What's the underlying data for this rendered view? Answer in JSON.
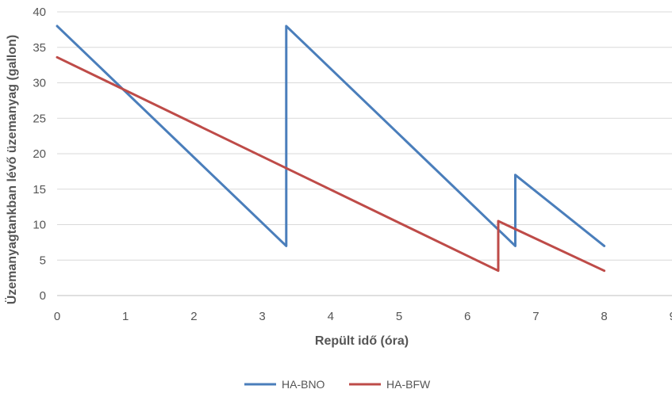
{
  "chart_data": {
    "type": "line",
    "xlabel": "Repült idő (óra)",
    "ylabel": "Üzemanyagtankban lévő üzemanyag (gallon)",
    "xlim": [
      0,
      9
    ],
    "ylim": [
      0,
      40
    ],
    "x_ticks": [
      0,
      1,
      2,
      3,
      4,
      5,
      6,
      7,
      8,
      9
    ],
    "y_ticks": [
      0,
      5,
      10,
      15,
      20,
      25,
      30,
      35,
      40
    ],
    "grid": "horizontal",
    "legend_position": "bottom",
    "series": [
      {
        "name": "HA-BNO",
        "color": "#4a7ebb",
        "points": [
          [
            0,
            38
          ],
          [
            3.35,
            7
          ],
          [
            3.35,
            38
          ],
          [
            6.7,
            7
          ],
          [
            6.7,
            17
          ],
          [
            8,
            7
          ]
        ]
      },
      {
        "name": "HA-BFW",
        "color": "#be4b48",
        "points": [
          [
            0,
            33.6
          ],
          [
            6.45,
            3.5
          ],
          [
            6.45,
            10.5
          ],
          [
            8,
            3.5
          ]
        ]
      }
    ]
  }
}
